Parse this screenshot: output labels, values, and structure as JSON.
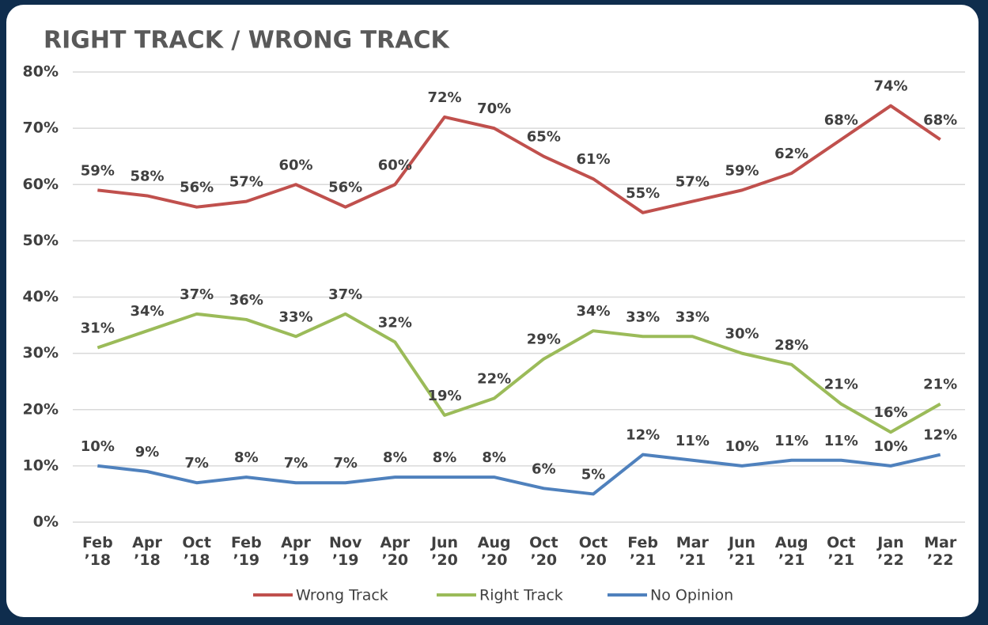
{
  "chart_data": {
    "type": "line",
    "title": "RIGHT TRACK / WRONG TRACK",
    "categories": [
      "Feb ’18",
      "Apr ’18",
      "Oct ’18",
      "Feb ’19",
      "Apr ’19",
      "Nov ’19",
      "Apr ’20",
      "Jun ’20",
      "Aug ’20",
      "Oct ’20",
      "Oct ’20",
      "Feb ’21",
      "Mar ’21",
      "Jun ’21",
      "Aug ’21",
      "Oct ’21",
      "Jan ’22",
      "Mar ’22"
    ],
    "series": [
      {
        "name": "Wrong Track",
        "color": "#c0504d",
        "values": [
          59,
          58,
          56,
          57,
          60,
          56,
          60,
          72,
          70,
          65,
          61,
          55,
          57,
          59,
          62,
          68,
          74,
          68
        ],
        "value_labels": [
          "59%",
          "58%",
          "56%",
          "57%",
          "60%",
          "56%",
          "60%",
          "72%",
          "70%",
          "65%",
          "61%",
          "55%",
          "57%",
          "59%",
          "62%",
          "68%",
          "74%",
          "68%"
        ]
      },
      {
        "name": "Right Track",
        "color": "#9bbb59",
        "values": [
          31,
          34,
          37,
          36,
          33,
          37,
          32,
          19,
          22,
          29,
          34,
          33,
          33,
          30,
          28,
          21,
          16,
          21
        ],
        "value_labels": [
          "31%",
          "34%",
          "37%",
          "36%",
          "33%",
          "37%",
          "32%",
          "19%",
          "22%",
          "29%",
          "34%",
          "33%",
          "33%",
          "30%",
          "28%",
          "21%",
          "16%",
          "21%"
        ]
      },
      {
        "name": "No Opinion",
        "color": "#4f81bd",
        "values": [
          10,
          9,
          7,
          8,
          7,
          7,
          8,
          8,
          8,
          6,
          5,
          12,
          11,
          10,
          11,
          11,
          10,
          12
        ],
        "value_labels": [
          "10%",
          "9%",
          "7%",
          "8%",
          "7%",
          "7%",
          "8%",
          "8%",
          "8%",
          "6%",
          "5%",
          "12%",
          "11%",
          "10%",
          "11%",
          "11%",
          "10%",
          "12%"
        ]
      }
    ],
    "ylim": [
      0,
      80
    ],
    "yticks": [
      {
        "value": 0,
        "label": "0%"
      },
      {
        "value": 10,
        "label": "10%"
      },
      {
        "value": 20,
        "label": "20%"
      },
      {
        "value": 30,
        "label": "30%"
      },
      {
        "value": 40,
        "label": "40%"
      },
      {
        "value": 50,
        "label": "50%"
      },
      {
        "value": 60,
        "label": "60%"
      },
      {
        "value": 70,
        "label": "70%"
      },
      {
        "value": 80,
        "label": "80%"
      }
    ],
    "grid": true,
    "legend": "bottom"
  }
}
